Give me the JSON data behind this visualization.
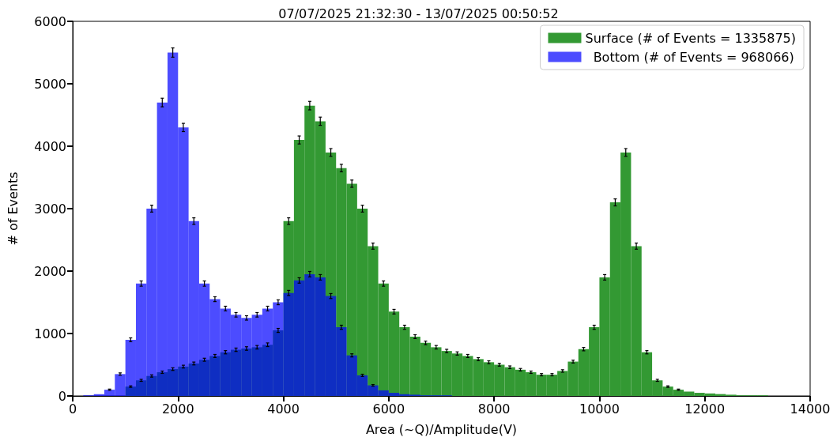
{
  "chart_data": {
    "type": "histogram",
    "title": "07/07/2025 21:32:30 - 13/07/2025 00:50:52",
    "xlabel": "Area (~Q)/Amplitude(V)",
    "ylabel": "# of Events",
    "bins": [
      0,
      200,
      400,
      600,
      800,
      1000,
      1200,
      1400,
      1600,
      1800,
      2000,
      2200,
      2400,
      2600,
      2800,
      3000,
      3200,
      3400,
      3600,
      3800,
      4000,
      4200,
      4400,
      4600,
      4800,
      5000,
      5200,
      5400,
      5600,
      5800,
      6000,
      6200,
      6400,
      6600,
      6800,
      7000,
      7200,
      7400,
      7600,
      7800,
      8000,
      8200,
      8400,
      8600,
      8800,
      9000,
      9200,
      9400,
      9600,
      9800,
      10000,
      10200,
      10400,
      10600,
      10800,
      11000,
      11200,
      11400,
      11600,
      11800,
      12000,
      12200,
      12400,
      12600,
      12800,
      13000,
      13200,
      13400,
      13600,
      13800,
      14000
    ],
    "series": [
      {
        "name": "Surface (# of Events = 1335875)",
        "color": "#339933",
        "values": [
          0,
          0,
          null,
          null,
          null,
          150,
          250,
          320,
          380,
          430,
          470,
          520,
          580,
          640,
          700,
          740,
          760,
          780,
          820,
          1050,
          2800,
          4100,
          4650,
          4400,
          3900,
          3650,
          3400,
          3000,
          2400,
          1800,
          1350,
          1100,
          950,
          850,
          780,
          720,
          680,
          640,
          590,
          540,
          500,
          460,
          420,
          380,
          340,
          340,
          400,
          550,
          750,
          1100,
          1900,
          3100,
          3900,
          2400,
          700,
          250,
          150,
          100,
          70,
          50,
          40,
          30,
          20,
          10,
          10,
          10,
          0,
          0,
          0,
          0
        ],
        "errors": [
          null,
          null,
          null,
          null,
          null,
          12,
          16,
          18,
          19,
          21,
          22,
          23,
          24,
          25,
          26,
          27,
          28,
          28,
          29,
          32,
          53,
          64,
          68,
          66,
          62,
          60,
          58,
          55,
          49,
          42,
          37,
          33,
          31,
          29,
          28,
          27,
          26,
          25,
          24,
          23,
          22,
          21,
          20,
          19,
          18,
          18,
          20,
          23,
          27,
          33,
          44,
          56,
          62,
          49,
          26,
          16,
          12,
          10,
          null,
          null,
          null,
          null,
          null,
          null,
          null,
          null,
          null,
          null,
          null,
          null
        ]
      },
      {
        "name": "  Bottom (# of Events = 968066)",
        "color": "#0000ff",
        "values": [
          0,
          10,
          30,
          100,
          350,
          900,
          1800,
          3000,
          4700,
          5500,
          4300,
          2800,
          1800,
          1550,
          1400,
          1300,
          1250,
          1300,
          1400,
          1500,
          1650,
          1850,
          1950,
          1900,
          1600,
          1100,
          650,
          330,
          170,
          90,
          50,
          30,
          20,
          10,
          10,
          10,
          0,
          0,
          0,
          0,
          0,
          0,
          0,
          0,
          0,
          0,
          0,
          0,
          0,
          0,
          0,
          0,
          0,
          0,
          0,
          0,
          0,
          0,
          0,
          0,
          0,
          0,
          0,
          0,
          0,
          0,
          0,
          0,
          0,
          0
        ],
        "errors": [
          null,
          null,
          null,
          10,
          19,
          30,
          42,
          55,
          69,
          74,
          66,
          53,
          42,
          39,
          37,
          36,
          35,
          36,
          37,
          39,
          41,
          43,
          44,
          44,
          40,
          33,
          25,
          18,
          13,
          null,
          null,
          null,
          null,
          null,
          null,
          null,
          null,
          null,
          null,
          null,
          null,
          null,
          null,
          null,
          null,
          null,
          null,
          null,
          null,
          null,
          null,
          null,
          null,
          null,
          null,
          null,
          null,
          null,
          null,
          null,
          null,
          null,
          null,
          null,
          null,
          null,
          null,
          null,
          null,
          null
        ]
      }
    ],
    "xlim": [
      0,
      14000
    ],
    "xticks": [
      0,
      2000,
      4000,
      6000,
      8000,
      10000,
      12000,
      14000
    ],
    "ylim": [
      0,
      6000
    ],
    "yticks": [
      0,
      1000,
      2000,
      3000,
      4000,
      5000,
      6000
    ],
    "legend": "top right",
    "grid": false
  }
}
